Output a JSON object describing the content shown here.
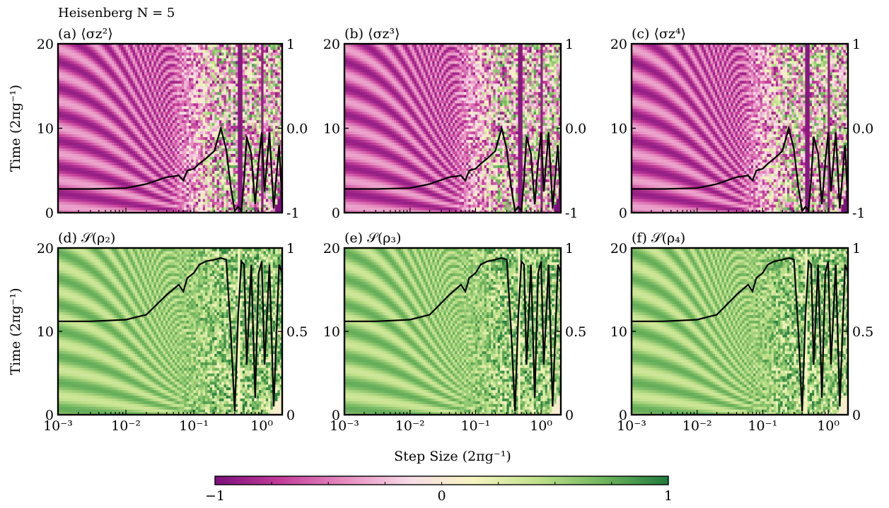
{
  "figure": {
    "suptitle": "Heisenberg N = 5",
    "shared_xlabel": "Step Size (2πg⁻¹)",
    "colorbar": {
      "ticks": [
        "−1",
        "0",
        "1"
      ],
      "colors": [
        "#7b0f7b",
        "#c33c99",
        "#e68cc0",
        "#f7dbe8",
        "#f7f5c0",
        "#bfe08a",
        "#6fb45e",
        "#1f7a3b"
      ]
    }
  },
  "chart_data": [
    {
      "type": "heatmap",
      "panel": "a",
      "title": "(a) ⟨σz²⟩",
      "ylabel": "Time (2πg⁻¹)",
      "xscale": "log",
      "xlim": [
        0.001,
        2
      ],
      "ylim": [
        0,
        20
      ],
      "xticks": [],
      "yticks": [
        "0",
        "10",
        "20"
      ],
      "right_axis": {
        "ylim": [
          -1,
          1
        ],
        "ticks": [
          "-1",
          "0.0",
          "1"
        ]
      },
      "colormap": "PiYG",
      "colorrange": [
        -1,
        1
      ],
      "curve": {
        "x": [
          0.001,
          0.003,
          0.01,
          0.02,
          0.04,
          0.06,
          0.07,
          0.08,
          0.1,
          0.12,
          0.15,
          0.2,
          0.25,
          0.3,
          0.35,
          0.4,
          0.45,
          0.5,
          0.55,
          0.6,
          0.7,
          0.8,
          0.9,
          1.0,
          1.1,
          1.3,
          1.5,
          1.8,
          2.0
        ],
        "y": [
          -0.72,
          -0.72,
          -0.71,
          -0.66,
          -0.58,
          -0.56,
          -0.62,
          -0.5,
          -0.48,
          -0.42,
          -0.36,
          -0.27,
          0.0,
          -0.25,
          -0.7,
          -0.98,
          -0.93,
          -0.98,
          -0.6,
          -0.1,
          -0.3,
          -0.9,
          -0.4,
          -0.05,
          -0.75,
          -0.05,
          -0.95,
          -0.2,
          -0.9
        ]
      }
    },
    {
      "type": "heatmap",
      "panel": "b",
      "title": "(b) ⟨σz³⟩",
      "ylabel": "",
      "xscale": "log",
      "xlim": [
        0.001,
        2
      ],
      "ylim": [
        0,
        20
      ],
      "xticks": [],
      "yticks": [
        "0",
        "10",
        "20"
      ],
      "right_axis": {
        "ylim": [
          -1,
          1
        ],
        "ticks": [
          "-1",
          "0.0",
          "1"
        ]
      },
      "colormap": "PiYG",
      "colorrange": [
        -1,
        1
      ],
      "curve": {
        "x": [
          0.001,
          0.003,
          0.01,
          0.02,
          0.04,
          0.06,
          0.07,
          0.08,
          0.1,
          0.12,
          0.15,
          0.2,
          0.25,
          0.3,
          0.35,
          0.4,
          0.45,
          0.5,
          0.55,
          0.6,
          0.7,
          0.8,
          0.9,
          1.0,
          1.1,
          1.3,
          1.5,
          1.8,
          2.0
        ],
        "y": [
          -0.72,
          -0.72,
          -0.71,
          -0.66,
          -0.58,
          -0.56,
          -0.62,
          -0.5,
          -0.48,
          -0.42,
          -0.36,
          -0.27,
          0.0,
          -0.25,
          -0.7,
          -0.98,
          -0.93,
          -0.98,
          -0.6,
          -0.1,
          -0.3,
          -0.9,
          -0.4,
          -0.05,
          -0.75,
          -0.05,
          -0.95,
          -0.2,
          -0.9
        ]
      }
    },
    {
      "type": "heatmap",
      "panel": "c",
      "title": "(c) ⟨σz⁴⟩",
      "ylabel": "",
      "xscale": "log",
      "xlim": [
        0.001,
        2
      ],
      "ylim": [
        0,
        20
      ],
      "xticks": [],
      "yticks": [
        "0",
        "10",
        "20"
      ],
      "right_axis": {
        "ylim": [
          -1,
          1
        ],
        "ticks": [
          "-1",
          "0.0",
          "1"
        ]
      },
      "colormap": "PiYG",
      "colorrange": [
        -1,
        1
      ],
      "curve": {
        "x": [
          0.001,
          0.003,
          0.01,
          0.02,
          0.04,
          0.06,
          0.07,
          0.08,
          0.1,
          0.12,
          0.15,
          0.2,
          0.25,
          0.3,
          0.35,
          0.4,
          0.45,
          0.5,
          0.55,
          0.6,
          0.7,
          0.8,
          0.9,
          1.0,
          1.1,
          1.3,
          1.5,
          1.8,
          2.0
        ],
        "y": [
          -0.72,
          -0.72,
          -0.71,
          -0.66,
          -0.58,
          -0.56,
          -0.62,
          -0.5,
          -0.48,
          -0.42,
          -0.36,
          -0.27,
          0.0,
          -0.25,
          -0.7,
          -0.98,
          -0.93,
          -0.98,
          -0.6,
          -0.1,
          -0.3,
          -0.9,
          -0.4,
          -0.05,
          -0.75,
          -0.05,
          -0.95,
          -0.2,
          -0.9
        ]
      }
    },
    {
      "type": "heatmap",
      "panel": "d",
      "title": "(d) 𝒮(ρ₂)",
      "ylabel": "Time (2πg⁻¹)",
      "xscale": "log",
      "xlim": [
        0.001,
        2
      ],
      "ylim": [
        0,
        20
      ],
      "xticks": [
        "10⁻³",
        "10⁻²",
        "10⁻¹",
        "10⁰"
      ],
      "yticks": [
        "0",
        "10",
        "20"
      ],
      "right_axis": {
        "ylim": [
          0,
          1
        ],
        "ticks": [
          "0",
          "0.5",
          "1"
        ]
      },
      "colormap": "PiYG",
      "colorrange": [
        -1,
        1
      ],
      "curve": {
        "x": [
          0.001,
          0.003,
          0.01,
          0.02,
          0.04,
          0.06,
          0.07,
          0.08,
          0.1,
          0.12,
          0.15,
          0.2,
          0.25,
          0.3,
          0.35,
          0.4,
          0.45,
          0.5,
          0.55,
          0.6,
          0.7,
          0.8,
          0.9,
          1.0,
          1.1,
          1.3,
          1.5,
          1.8,
          2.0
        ],
        "y": [
          0.56,
          0.56,
          0.57,
          0.6,
          0.72,
          0.78,
          0.74,
          0.82,
          0.85,
          0.9,
          0.92,
          0.93,
          0.94,
          0.93,
          0.5,
          0.02,
          0.6,
          0.92,
          0.9,
          0.3,
          0.9,
          0.1,
          0.85,
          0.92,
          0.3,
          0.9,
          0.05,
          0.9,
          0.85
        ]
      }
    },
    {
      "type": "heatmap",
      "panel": "e",
      "title": "(e) 𝒮(ρ₃)",
      "ylabel": "",
      "xscale": "log",
      "xlim": [
        0.001,
        2
      ],
      "ylim": [
        0,
        20
      ],
      "xticks": [
        "10⁻³",
        "10⁻²",
        "10⁻¹",
        "10⁰"
      ],
      "yticks": [
        "0",
        "10",
        "20"
      ],
      "right_axis": {
        "ylim": [
          0,
          1
        ],
        "ticks": [
          "0",
          "0.5",
          "1"
        ]
      },
      "colormap": "PiYG",
      "colorrange": [
        -1,
        1
      ],
      "curve": {
        "x": [
          0.001,
          0.003,
          0.01,
          0.02,
          0.04,
          0.06,
          0.07,
          0.08,
          0.1,
          0.12,
          0.15,
          0.2,
          0.25,
          0.3,
          0.35,
          0.4,
          0.45,
          0.5,
          0.55,
          0.6,
          0.7,
          0.8,
          0.9,
          1.0,
          1.1,
          1.3,
          1.5,
          1.8,
          2.0
        ],
        "y": [
          0.56,
          0.56,
          0.57,
          0.6,
          0.72,
          0.78,
          0.74,
          0.82,
          0.85,
          0.9,
          0.92,
          0.93,
          0.94,
          0.93,
          0.5,
          0.02,
          0.6,
          0.92,
          0.9,
          0.3,
          0.9,
          0.1,
          0.85,
          0.92,
          0.3,
          0.9,
          0.05,
          0.9,
          0.85
        ]
      }
    },
    {
      "type": "heatmap",
      "panel": "f",
      "title": "(f) 𝒮(ρ₄)",
      "ylabel": "",
      "xscale": "log",
      "xlim": [
        0.001,
        2
      ],
      "ylim": [
        0,
        20
      ],
      "xticks": [
        "10⁻³",
        "10⁻²",
        "10⁻¹",
        "10⁰"
      ],
      "yticks": [
        "0",
        "10",
        "20"
      ],
      "right_axis": {
        "ylim": [
          0,
          1
        ],
        "ticks": [
          "0",
          "0.5",
          "1"
        ]
      },
      "colormap": "PiYG",
      "colorrange": [
        -1,
        1
      ],
      "curve": {
        "x": [
          0.001,
          0.003,
          0.01,
          0.02,
          0.04,
          0.06,
          0.07,
          0.08,
          0.1,
          0.12,
          0.15,
          0.2,
          0.25,
          0.3,
          0.35,
          0.4,
          0.45,
          0.5,
          0.55,
          0.6,
          0.7,
          0.8,
          0.9,
          1.0,
          1.1,
          1.3,
          1.5,
          1.8,
          2.0
        ],
        "y": [
          0.56,
          0.56,
          0.57,
          0.6,
          0.72,
          0.78,
          0.74,
          0.82,
          0.85,
          0.9,
          0.92,
          0.93,
          0.94,
          0.93,
          0.5,
          0.02,
          0.6,
          0.92,
          0.9,
          0.3,
          0.9,
          0.1,
          0.85,
          0.92,
          0.3,
          0.9,
          0.05,
          0.9,
          0.85
        ]
      }
    }
  ]
}
